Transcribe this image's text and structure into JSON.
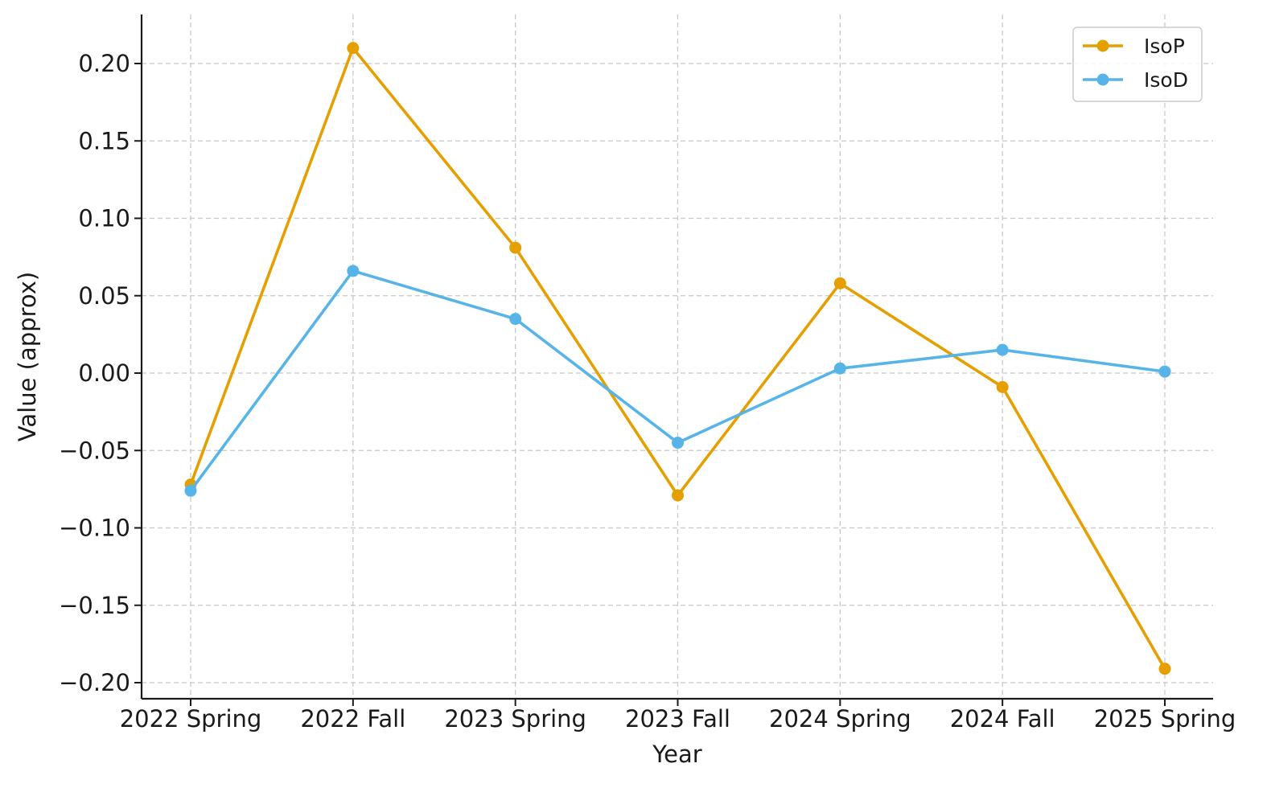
{
  "chart_data": {
    "type": "line",
    "title": "",
    "xlabel": "Year",
    "ylabel": "Value (approx)",
    "categories": [
      "2022 Spring",
      "2022 Fall",
      "2023 Spring",
      "2023 Fall",
      "2024 Spring",
      "2024 Fall",
      "2025 Spring"
    ],
    "ylim": [
      -0.21,
      0.231
    ],
    "yticks": [
      0.2,
      0.15,
      0.1,
      0.05,
      0.0,
      -0.05,
      -0.1,
      -0.15,
      -0.2
    ],
    "ytick_labels": [
      "0.20",
      "0.15",
      "0.10",
      "0.05",
      "0.00",
      "−0.05",
      "−0.10",
      "−0.15",
      "−0.20"
    ],
    "grid": true,
    "legend_position": "top-right",
    "series": [
      {
        "name": "IsoP",
        "color": "#E69F00",
        "marker": "circle",
        "values": [
          -0.072,
          0.21,
          0.081,
          -0.079,
          0.058,
          -0.009,
          -0.191
        ]
      },
      {
        "name": "IsoD",
        "color": "#56B4E9",
        "marker": "circle",
        "values": [
          -0.076,
          0.066,
          0.035,
          -0.045,
          0.003,
          0.015,
          0.001
        ]
      }
    ]
  }
}
